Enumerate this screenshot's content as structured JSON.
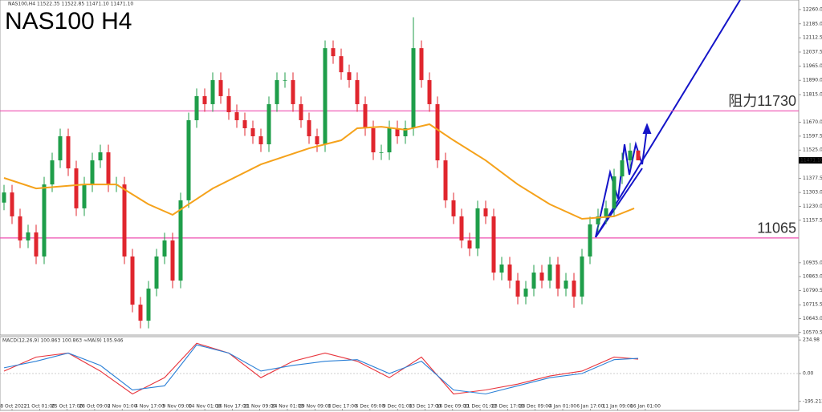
{
  "chart_data": {
    "type": "candlestick",
    "title": "NAS100 H4",
    "header": "NAS100,H4  11522.35 11522.85 11471.10 11471.10",
    "ylim": [
      10557,
      12310
    ],
    "yticks": [
      {
        "value": 12260,
        "label": "12260.00"
      },
      {
        "value": 12185,
        "label": "12185.00"
      },
      {
        "value": 12112.5,
        "label": "12112.50"
      },
      {
        "value": 12037.5,
        "label": "12037.50"
      },
      {
        "value": 11965,
        "label": "11965.00"
      },
      {
        "value": 11890,
        "label": "11890.00"
      },
      {
        "value": 11815,
        "label": "11815.00"
      },
      {
        "value": 11670,
        "label": "11670.00"
      },
      {
        "value": 11597.5,
        "label": "11597.50"
      },
      {
        "value": 11525,
        "label": "11525.00"
      },
      {
        "value": 11377.5,
        "label": "11377.50"
      },
      {
        "value": 11303,
        "label": "11303.00"
      },
      {
        "value": 11230,
        "label": "11230.00"
      },
      {
        "value": 11157.5,
        "label": "11157.50"
      },
      {
        "value": 10935,
        "label": "10935.00"
      },
      {
        "value": 10863,
        "label": "10863.00"
      },
      {
        "value": 10790.5,
        "label": "10790.50"
      },
      {
        "value": 10715.5,
        "label": "10715.50"
      },
      {
        "value": 10643,
        "label": "10643.00"
      },
      {
        "value": 10570.5,
        "label": "10570.50"
      }
    ],
    "x_labels": [
      "18 Oct 2022",
      "21 Oct 01:00",
      "25 Oct 17:00",
      "28 Oct 09:00",
      "2 Nov 01:00",
      "4 Nov 17:00",
      "9 Nov 09:00",
      "14 Nov 01:00",
      "16 Nov 17:00",
      "21 Nov 09:00",
      "24 Nov 01:00",
      "29 Nov 09:00",
      "1 Dec 17:00",
      "6 Dec 09:00",
      "9 Dec 01:00",
      "13 Dec 17:00",
      "16 Dec 09:00",
      "21 Dec 01:00",
      "23 Dec 17:00",
      "28 Dec 09:00",
      "4 Jan 01:00",
      "6 Jan 17:00",
      "11 Jan 09:00",
      "16 Jan 01:00"
    ],
    "open": [
      11250,
      11303,
      11178,
      11052,
      11094,
      10968,
      11345,
      11471,
      11597,
      11429,
      11220,
      11345,
      11471,
      11513,
      11345,
      11345,
      10968,
      10716,
      10632,
      10800,
      10968,
      11052,
      10842,
      11262,
      11681,
      11807,
      11765,
      11891,
      11807,
      11723,
      11681,
      11639,
      11597,
      11555,
      11765,
      11891,
      11891,
      11765,
      11681,
      11597,
      11555,
      12058,
      12016,
      11932,
      11891,
      11765,
      11639,
      11513,
      11513,
      11639,
      11597,
      11639,
      12058,
      11891,
      11765,
      11471,
      11262,
      11178,
      11052,
      11010,
      11220,
      11178,
      10884,
      10926,
      10842,
      10758,
      10800,
      10884,
      10842,
      10926,
      10800,
      10842,
      10758,
      10968,
      11136,
      11178,
      11220,
      11387,
      11471,
      11522.35
    ],
    "high": [
      11343,
      11343,
      11218,
      11134,
      11134,
      11385,
      11511,
      11637,
      11637,
      11469,
      11385,
      11511,
      11553,
      11553,
      11385,
      11385,
      11008,
      10756,
      10840,
      11008,
      11092,
      11092,
      11302,
      11721,
      11847,
      11847,
      11931,
      11931,
      11847,
      11763,
      11721,
      11679,
      11637,
      11805,
      11931,
      11931,
      11931,
      11805,
      11721,
      11637,
      12098,
      12098,
      12056,
      11972,
      11931,
      11805,
      11679,
      11553,
      11679,
      11679,
      11679,
      12220,
      12098,
      11931,
      11805,
      11511,
      11302,
      11218,
      11092,
      11260,
      11260,
      11218,
      10966,
      10966,
      10882,
      10840,
      10924,
      10924,
      10966,
      10966,
      10882,
      10882,
      11008,
      11176,
      11218,
      11260,
      11427,
      11511,
      11562,
      11522.85
    ],
    "low": [
      11210,
      11138,
      11012,
      11012,
      10928,
      10928,
      11305,
      11431,
      11389,
      11180,
      11180,
      11305,
      11431,
      11305,
      11305,
      10928,
      10676,
      10592,
      10592,
      10760,
      10928,
      10802,
      10802,
      11222,
      11641,
      11725,
      11725,
      11767,
      11683,
      11641,
      11599,
      11557,
      11515,
      11515,
      11725,
      11851,
      11725,
      11641,
      11557,
      11515,
      11515,
      11976,
      11892,
      11851,
      11725,
      11599,
      11473,
      11473,
      11473,
      11557,
      11557,
      11599,
      11851,
      11725,
      11431,
      11222,
      11138,
      11012,
      10970,
      10970,
      11138,
      10844,
      10844,
      10802,
      10718,
      10718,
      10760,
      10802,
      10802,
      10760,
      10760,
      10700,
      10718,
      10928,
      11096,
      11138,
      11180,
      11347,
      11431,
      11471.1
    ],
    "close": [
      11303,
      11178,
      11052,
      11094,
      10968,
      11345,
      11471,
      11597,
      11429,
      11220,
      11345,
      11471,
      11513,
      11345,
      11345,
      10968,
      10716,
      10632,
      10800,
      10968,
      11052,
      10842,
      11262,
      11681,
      11807,
      11765,
      11891,
      11807,
      11723,
      11681,
      11639,
      11597,
      11555,
      11765,
      11891,
      11891,
      11765,
      11681,
      11597,
      11555,
      12058,
      12016,
      11932,
      11891,
      11765,
      11639,
      11513,
      11513,
      11639,
      11597,
      11639,
      12058,
      11891,
      11765,
      11471,
      11262,
      11178,
      11052,
      11010,
      11220,
      11178,
      10884,
      10926,
      10842,
      10758,
      10800,
      10884,
      10842,
      10926,
      10800,
      10842,
      10758,
      10968,
      11136,
      11178,
      11220,
      11387,
      11471,
      11522,
      11471.1
    ],
    "colors": {
      "up": "#1f9e4a",
      "down": "#e0262e"
    },
    "moving_average": {
      "color": "#f5a21b",
      "x": [
        0,
        4,
        10,
        14,
        18,
        21,
        26,
        32,
        38,
        42,
        44,
        47,
        50,
        53,
        56,
        60,
        64,
        68,
        72,
        76,
        78.5
      ],
      "values": [
        11379,
        11324,
        11345,
        11345,
        11241,
        11186,
        11324,
        11450,
        11534,
        11576,
        11639,
        11647,
        11631,
        11660,
        11576,
        11471,
        11345,
        11241,
        11165,
        11178,
        11220
      ]
    },
    "levels": [
      {
        "value": 11730,
        "label": "阻力11730",
        "color": "#ee4fb0"
      },
      {
        "value": 11065,
        "color": "#ee4fb0"
      }
    ],
    "last_price": {
      "value": 11471.1,
      "label": "11471.10"
    },
    "macd": {
      "title": "MACD(12,26,9) 100.863 100.863 ≈MA(9) 105.946",
      "ylim": [
        -258,
        258
      ],
      "yticks": [
        {
          "value": 234.98,
          "label": "234.98"
        },
        {
          "value": 0,
          "label": "0.00"
        },
        -195.213
      ],
      "x": [
        0,
        4,
        8,
        12,
        16,
        20,
        24,
        28,
        32,
        36,
        40,
        44,
        48,
        52,
        56,
        60,
        64,
        68,
        72,
        76,
        79
      ],
      "series": [
        {
          "color": "#e8343c",
          "values": [
            17,
            115,
            143,
            17,
            -143,
            -29,
            212,
            143,
            -29,
            86,
            143,
            86,
            -29,
            115,
            -143,
            -115,
            -74,
            -17,
            17,
            115,
            100.863
          ]
        },
        {
          "color": "#2a7fd6",
          "values": [
            40,
            86,
            143,
            57,
            -115,
            -86,
            201,
            143,
            17,
            57,
            86,
            97,
            0,
            86,
            -115,
            -143,
            -86,
            -29,
            0,
            97,
            105.946
          ]
        }
      ]
    }
  }
}
